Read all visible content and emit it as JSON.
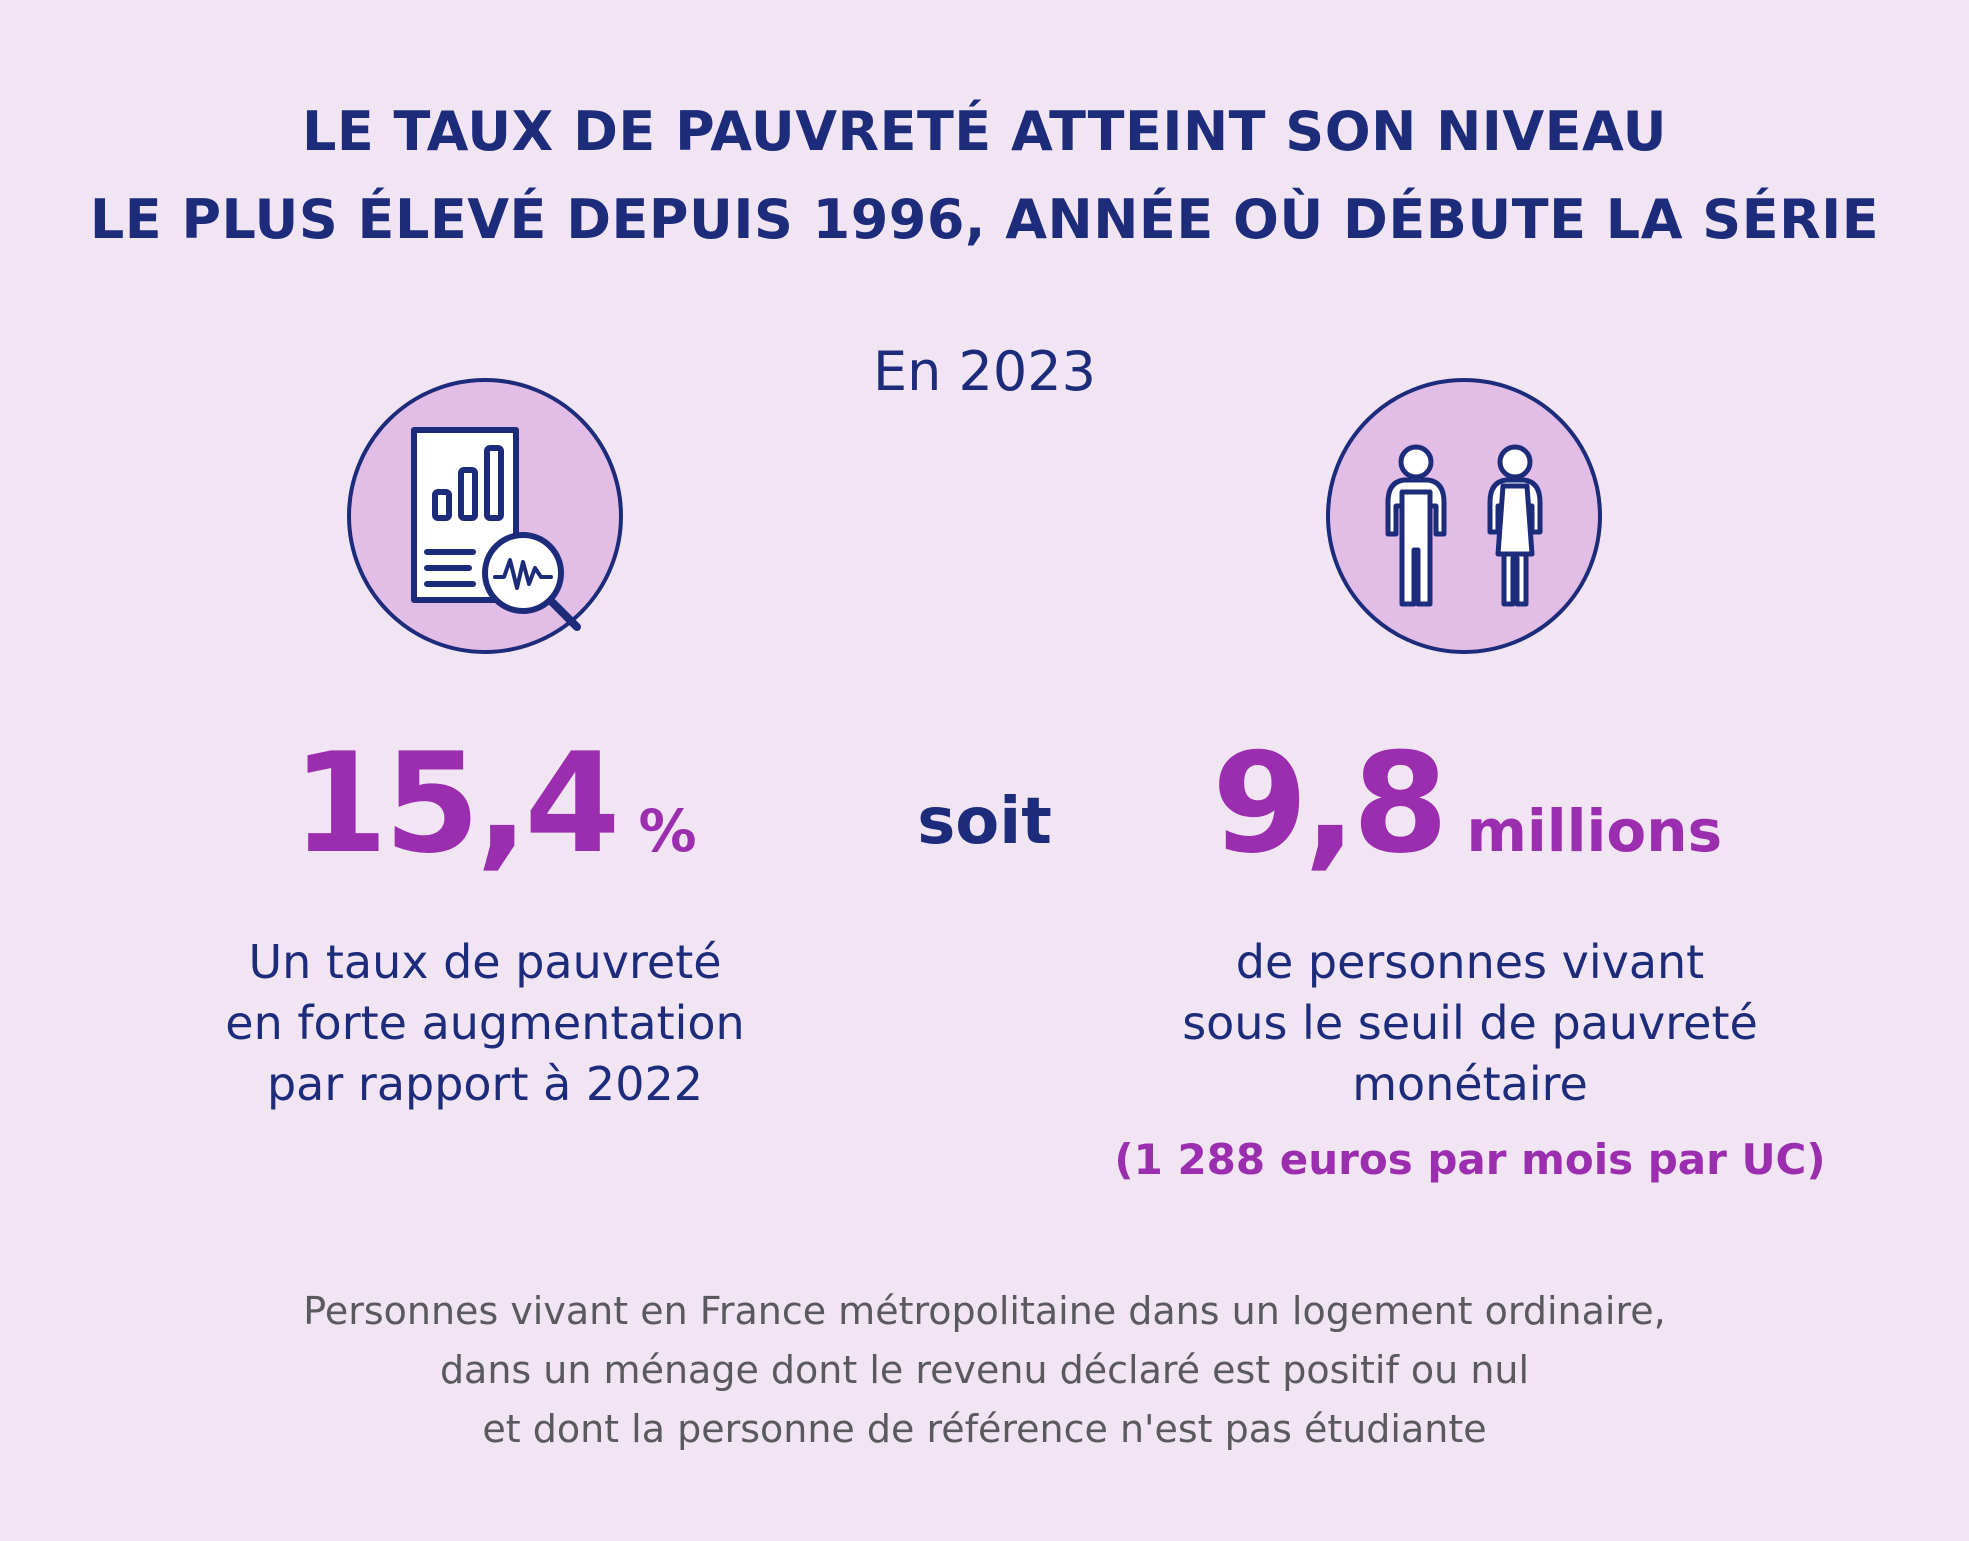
{
  "title": {
    "line1": "LE TAUX DE PAUVRETÉ ATTEINT SON NIVEAU",
    "line2": "LE PLUS ÉLEVÉ DEPUIS 1996, ANNÉE OÙ DÉBUTE LA SÉRIE"
  },
  "year_label": "En 2023",
  "left": {
    "icon": "report-chart-magnifier-icon",
    "value": "15,4",
    "unit": "%",
    "desc": [
      "Un taux de pauvreté",
      "en forte augmentation",
      "par rapport à 2022"
    ]
  },
  "connector": "soit",
  "right": {
    "icon": "people-icon",
    "value": "9,8",
    "unit": "millions",
    "desc": [
      "de personnes vivant",
      "sous le seuil de pauvreté",
      "monétaire"
    ],
    "threshold": "(1 288 euros par mois par UC)"
  },
  "footnote": [
    "Personnes vivant en France métropolitaine dans un logement ordinaire,",
    "dans un ménage dont le revenu déclaré est positif ou nul",
    "et dont la personne de référence n'est pas étudiante"
  ],
  "colors": {
    "background": "#f1e4f3",
    "navy": "#1d2b7b",
    "purple": "#9b2eae",
    "icon_fill": "#e2bde6",
    "footnote": "#5a5a5e"
  }
}
